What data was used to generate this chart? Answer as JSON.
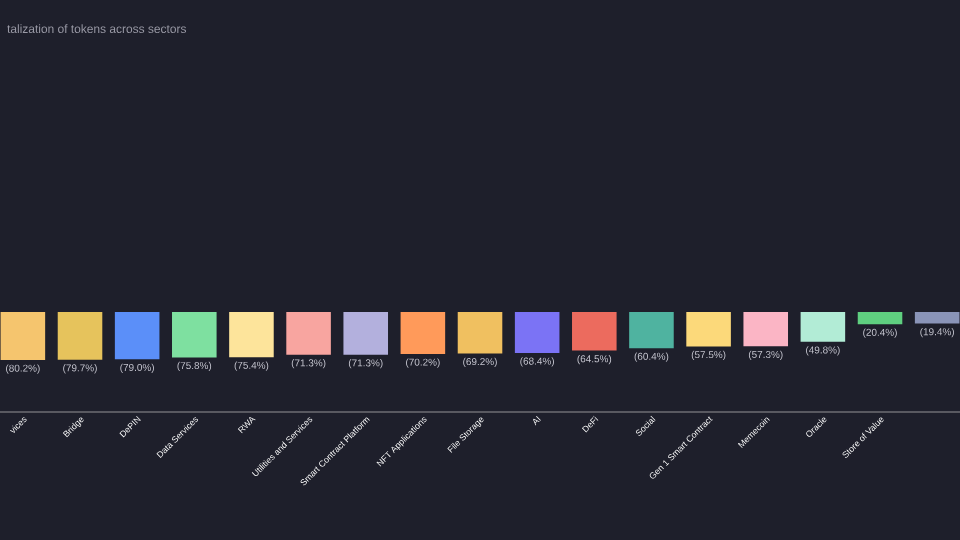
{
  "chart_data": {
    "type": "bar",
    "title": "talization of tokens across sectors",
    "categories": [
      "vices",
      "Bridge",
      "DePIN",
      "Data Services",
      "RWA",
      "Utilities and Services",
      "Smart Contract Platform",
      "NFT Applications",
      "File Storage",
      "AI",
      "DeFi",
      "Social",
      "Gen 1 Smart Contract",
      "Memecoin",
      "Oracle",
      "Store of Value",
      null
    ],
    "values": [
      -80.2,
      -79.7,
      -79.0,
      -75.8,
      -75.4,
      -71.3,
      -71.3,
      -70.2,
      -69.2,
      -68.4,
      -64.5,
      -60.4,
      -57.5,
      -57.3,
      -49.8,
      -20.4,
      -19.4
    ],
    "value_labels": [
      "(80.2%)",
      "(79.7%)",
      "(79.0%)",
      "(75.8%)",
      "(75.4%)",
      "(71.3%)",
      "(71.3%)",
      "(70.2%)",
      "(69.2%)",
      "(68.4%)",
      "(64.5%)",
      "(60.4%)",
      "(57.5%)",
      "(57.3%)",
      "(49.8%)",
      "(20.4%)",
      "(19.4%)"
    ],
    "colors": [
      "#f5c56e",
      "#e6c35c",
      "#5b8ff9",
      "#7ee0a0",
      "#fde49b",
      "#f8a5a0",
      "#b3b0dd",
      "#ff9a5a",
      "#f0c060",
      "#7b73f5",
      "#ec6b5e",
      "#4fb3a0",
      "#fcd97a",
      "#fbb5c5",
      "#b2ecd6",
      "#5fcf80",
      "#8a94b8"
    ],
    "tick_labels": "x"
  }
}
